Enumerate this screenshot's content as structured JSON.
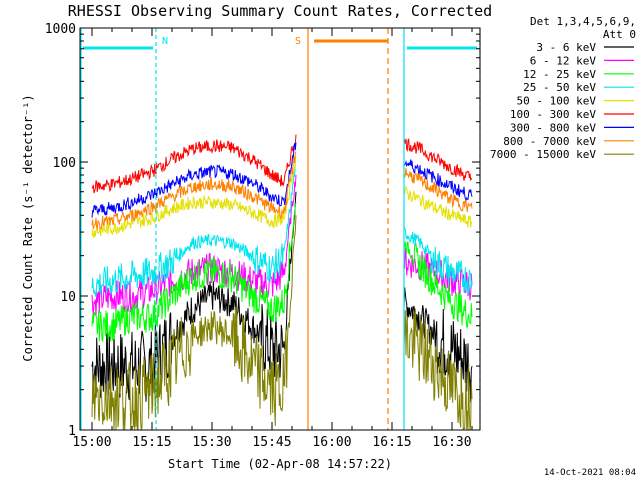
{
  "chart_data": {
    "type": "line",
    "title": "RHESSI Observing Summary Count Rates, Corrected",
    "xlabel": "Start Time (02-Apr-08 14:57:22)",
    "ylabel": "Corrected Count Rate (s⁻¹ detector⁻¹)",
    "yscale": "log",
    "ylim": [
      1,
      1000
    ],
    "xlim": [
      "14:57",
      "16:37"
    ],
    "x_tick_labels": [
      "15:00",
      "15:15",
      "15:30",
      "15:45",
      "16:00",
      "16:15",
      "16:30"
    ],
    "y_tick_labels": [
      "1",
      "10",
      "100",
      "1000"
    ],
    "grid": false,
    "legend_position": "right",
    "legend_header": [
      "Det 1,3,4,5,6,9,",
      "Att 0"
    ],
    "footer_date": "14-Oct-2021 08:04",
    "annotations": [
      {
        "label": "N",
        "meaning": "night",
        "start": "14:57",
        "end": "15:16",
        "color": "#00e5ee"
      },
      {
        "label": "",
        "meaning": "night",
        "start": "16:18",
        "end": "16:37",
        "color": "#00e5ee"
      },
      {
        "label": "S",
        "meaning": "SAA",
        "start": "15:52",
        "end": "16:14",
        "color": "#ff8000"
      }
    ],
    "data_gaps": [
      [
        "14:57",
        "14:58"
      ],
      [
        "15:51",
        "16:18"
      ]
    ],
    "series": [
      {
        "name": "3 - 6 keV",
        "color": "#000000",
        "points": [
          [
            "15:00",
            3
          ],
          [
            "15:05",
            3
          ],
          [
            "15:10",
            3
          ],
          [
            "15:15",
            3
          ],
          [
            "15:20",
            5
          ],
          [
            "15:25",
            8
          ],
          [
            "15:30",
            10
          ],
          [
            "15:35",
            9
          ],
          [
            "15:40",
            6
          ],
          [
            "15:45",
            4
          ],
          [
            "15:48",
            4
          ],
          [
            "15:51",
            60
          ],
          [
            "16:18",
            9
          ],
          [
            "16:22",
            7
          ],
          [
            "16:26",
            5
          ],
          [
            "16:30",
            4
          ],
          [
            "16:35",
            3
          ]
        ]
      },
      {
        "name": "6 - 12 keV",
        "color": "#ff00ff",
        "points": [
          [
            "15:00",
            9
          ],
          [
            "15:05",
            10
          ],
          [
            "15:10",
            10
          ],
          [
            "15:15",
            11
          ],
          [
            "15:20",
            13
          ],
          [
            "15:25",
            15
          ],
          [
            "15:30",
            16
          ],
          [
            "15:35",
            15
          ],
          [
            "15:40",
            13
          ],
          [
            "15:45",
            12
          ],
          [
            "15:48",
            15
          ],
          [
            "15:51",
            80
          ],
          [
            "16:18",
            18
          ],
          [
            "16:22",
            17
          ],
          [
            "16:26",
            15
          ],
          [
            "16:30",
            13
          ],
          [
            "16:35",
            12
          ]
        ]
      },
      {
        "name": "12 - 25 keV",
        "color": "#00ff00",
        "points": [
          [
            "15:00",
            6
          ],
          [
            "15:05",
            6
          ],
          [
            "15:10",
            7
          ],
          [
            "15:15",
            7
          ],
          [
            "15:20",
            10
          ],
          [
            "15:25",
            14
          ],
          [
            "15:30",
            15
          ],
          [
            "15:35",
            14
          ],
          [
            "15:40",
            10
          ],
          [
            "15:45",
            8
          ],
          [
            "15:48",
            9
          ],
          [
            "15:51",
            50
          ],
          [
            "16:18",
            25
          ],
          [
            "16:22",
            17
          ],
          [
            "16:26",
            12
          ],
          [
            "16:30",
            9
          ],
          [
            "16:35",
            7
          ]
        ]
      },
      {
        "name": "25 - 50 keV",
        "color": "#00e5ee",
        "points": [
          [
            "15:00",
            12
          ],
          [
            "15:05",
            13
          ],
          [
            "15:10",
            14
          ],
          [
            "15:15",
            15
          ],
          [
            "15:20",
            18
          ],
          [
            "15:25",
            25
          ],
          [
            "15:30",
            26
          ],
          [
            "15:35",
            25
          ],
          [
            "15:40",
            20
          ],
          [
            "15:45",
            16
          ],
          [
            "15:48",
            20
          ],
          [
            "15:51",
            100
          ],
          [
            "16:18",
            30
          ],
          [
            "16:22",
            25
          ],
          [
            "16:26",
            18
          ],
          [
            "16:30",
            15
          ],
          [
            "16:35",
            13
          ]
        ]
      },
      {
        "name": "50 - 100 keV",
        "color": "#e5e000",
        "points": [
          [
            "15:00",
            30
          ],
          [
            "15:05",
            32
          ],
          [
            "15:10",
            35
          ],
          [
            "15:15",
            38
          ],
          [
            "15:20",
            45
          ],
          [
            "15:25",
            50
          ],
          [
            "15:30",
            50
          ],
          [
            "15:35",
            48
          ],
          [
            "15:40",
            42
          ],
          [
            "15:45",
            36
          ],
          [
            "15:48",
            38
          ],
          [
            "15:51",
            110
          ],
          [
            "16:18",
            60
          ],
          [
            "16:22",
            52
          ],
          [
            "16:26",
            45
          ],
          [
            "16:30",
            40
          ],
          [
            "16:35",
            35
          ]
        ]
      },
      {
        "name": "100 - 300 keV",
        "color": "#ff0000",
        "points": [
          [
            "15:00",
            65
          ],
          [
            "15:05",
            68
          ],
          [
            "15:10",
            75
          ],
          [
            "15:15",
            85
          ],
          [
            "15:20",
            105
          ],
          [
            "15:25",
            125
          ],
          [
            "15:30",
            132
          ],
          [
            "15:35",
            128
          ],
          [
            "15:40",
            105
          ],
          [
            "15:45",
            80
          ],
          [
            "15:48",
            70
          ],
          [
            "15:51",
            160
          ],
          [
            "16:18",
            140
          ],
          [
            "16:22",
            125
          ],
          [
            "16:26",
            105
          ],
          [
            "16:30",
            90
          ],
          [
            "16:35",
            75
          ]
        ]
      },
      {
        "name": "300 - 800 keV",
        "color": "#0000ff",
        "points": [
          [
            "15:00",
            43
          ],
          [
            "15:05",
            45
          ],
          [
            "15:10",
            50
          ],
          [
            "15:15",
            57
          ],
          [
            "15:20",
            68
          ],
          [
            "15:25",
            80
          ],
          [
            "15:30",
            85
          ],
          [
            "15:35",
            82
          ],
          [
            "15:40",
            70
          ],
          [
            "15:45",
            55
          ],
          [
            "15:48",
            50
          ],
          [
            "15:51",
            140
          ],
          [
            "16:18",
            100
          ],
          [
            "16:22",
            88
          ],
          [
            "16:26",
            75
          ],
          [
            "16:30",
            65
          ],
          [
            "16:35",
            55
          ]
        ]
      },
      {
        "name": "800 - 7000 keV",
        "color": "#ff8000",
        "points": [
          [
            "15:00",
            35
          ],
          [
            "15:05",
            36
          ],
          [
            "15:10",
            40
          ],
          [
            "15:15",
            46
          ],
          [
            "15:20",
            55
          ],
          [
            "15:25",
            65
          ],
          [
            "15:30",
            68
          ],
          [
            "15:35",
            66
          ],
          [
            "15:40",
            56
          ],
          [
            "15:45",
            45
          ],
          [
            "15:48",
            42
          ],
          [
            "15:51",
            120
          ],
          [
            "16:18",
            85
          ],
          [
            "16:22",
            72
          ],
          [
            "16:26",
            62
          ],
          [
            "16:30",
            52
          ],
          [
            "16:35",
            45
          ]
        ]
      },
      {
        "name": "7000 - 15000 keV",
        "color": "#808000",
        "points": [
          [
            "15:00",
            1.8
          ],
          [
            "15:05",
            1.8
          ],
          [
            "15:10",
            1.7
          ],
          [
            "15:15",
            2
          ],
          [
            "15:20",
            3
          ],
          [
            "15:25",
            5
          ],
          [
            "15:30",
            6
          ],
          [
            "15:35",
            5
          ],
          [
            "15:40",
            3
          ],
          [
            "15:45",
            2
          ],
          [
            "15:48",
            2
          ],
          [
            "15:51",
            40
          ],
          [
            "16:18",
            5
          ],
          [
            "16:22",
            4
          ],
          [
            "16:26",
            3
          ],
          [
            "16:30",
            2
          ],
          [
            "16:35",
            1.7
          ]
        ]
      }
    ]
  }
}
